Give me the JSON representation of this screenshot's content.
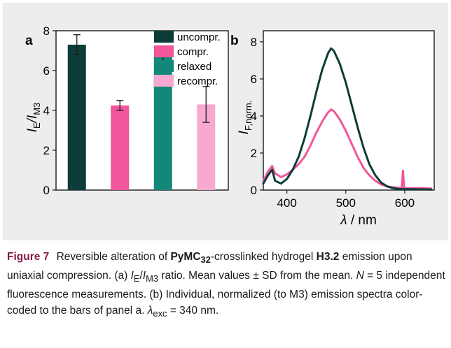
{
  "chart_data": [
    {
      "panel": "a",
      "type": "bar",
      "ylabel": "I_E/I_M3",
      "ylim": [
        0,
        8
      ],
      "yticks": [
        0,
        2,
        4,
        6,
        8
      ],
      "categories": [
        "uncompr.",
        "compr.",
        "relaxed",
        "recompr."
      ],
      "values": [
        7.3,
        4.25,
        6.7,
        4.3
      ],
      "errors": [
        0.5,
        0.25,
        0.45,
        0.9
      ],
      "colors": [
        "#0d3d38",
        "#f1559a",
        "#13877a",
        "#f7a9cf"
      ],
      "legend": [
        "uncompr.",
        "compr.",
        "relaxed",
        "recompr."
      ],
      "legend_position": "top-right"
    },
    {
      "panel": "b",
      "type": "line",
      "xlabel": "λ / nm",
      "ylabel": "I_F,norm.",
      "xlim": [
        360,
        650
      ],
      "ylim": [
        0,
        8.6
      ],
      "xticks": [
        400,
        500,
        600
      ],
      "yticks": [
        0,
        2,
        4,
        6,
        8
      ],
      "series": [
        {
          "color": "#0d3d38",
          "x": [
            360,
            368,
            375,
            380,
            390,
            400,
            410,
            420,
            430,
            440,
            450,
            460,
            470,
            475,
            480,
            490,
            500,
            510,
            520,
            530,
            540,
            550,
            560,
            570,
            580,
            590,
            600,
            610,
            620,
            630,
            645
          ],
          "y": [
            0.35,
            0.8,
            1.1,
            0.5,
            0.35,
            0.6,
            1.1,
            1.8,
            2.8,
            4.0,
            5.3,
            6.5,
            7.4,
            7.65,
            7.5,
            6.8,
            5.8,
            4.6,
            3.4,
            2.3,
            1.4,
            0.8,
            0.4,
            0.2,
            0.1,
            0.06,
            0.05,
            0.05,
            0.04,
            0.04,
            0.03
          ]
        },
        {
          "color": "#f1559a",
          "x": [
            360,
            368,
            375,
            380,
            390,
            400,
            410,
            420,
            430,
            440,
            450,
            460,
            470,
            475,
            480,
            490,
            500,
            510,
            520,
            530,
            540,
            550,
            560,
            570,
            580,
            590,
            595,
            597,
            599,
            601,
            603,
            610,
            620,
            630,
            645
          ],
          "y": [
            0.5,
            1.0,
            1.3,
            0.9,
            0.7,
            0.85,
            1.1,
            1.4,
            1.8,
            2.4,
            3.1,
            3.7,
            4.2,
            4.35,
            4.25,
            3.8,
            3.2,
            2.5,
            1.8,
            1.2,
            0.8,
            0.5,
            0.3,
            0.2,
            0.15,
            0.12,
            0.12,
            1.05,
            0.12,
            0.12,
            0.1,
            0.1,
            0.1,
            0.1,
            0.08
          ]
        }
      ]
    }
  ],
  "panels": {
    "a": {
      "label": "a",
      "ylabel_main": "I",
      "ylabel_sub1": "E",
      "ylabel_sep": "/I",
      "ylabel_sub2": "M3"
    },
    "b": {
      "label": "b",
      "ylabel_main": "I",
      "ylabel_sub": "F,norm.",
      "xlabel_sym": "λ",
      "xlabel_rest": " / nm"
    }
  },
  "caption": {
    "label": "Figure 7",
    "t1": "Reversible alteration of ",
    "b1": "PyMC",
    "b1sub": "32",
    "t2": "-crosslinked hydrogel ",
    "b2": "H3.2",
    "t3": " emission upon uniaxial compression. (a) ",
    "i1": "I",
    "i1sub": "E",
    "t4": "/",
    "i2": "I",
    "i2sub": "M3",
    "t5": " ratio. Mean values ± SD from the mean. ",
    "i3": "N",
    "t6": " = 5 independent fluorescence measurements. (b) Individual, normalized (to M3) emission spectra color-coded to the bars of panel a. ",
    "i4": "λ",
    "i4sub": "exc",
    "t7": " = 340 nm."
  }
}
